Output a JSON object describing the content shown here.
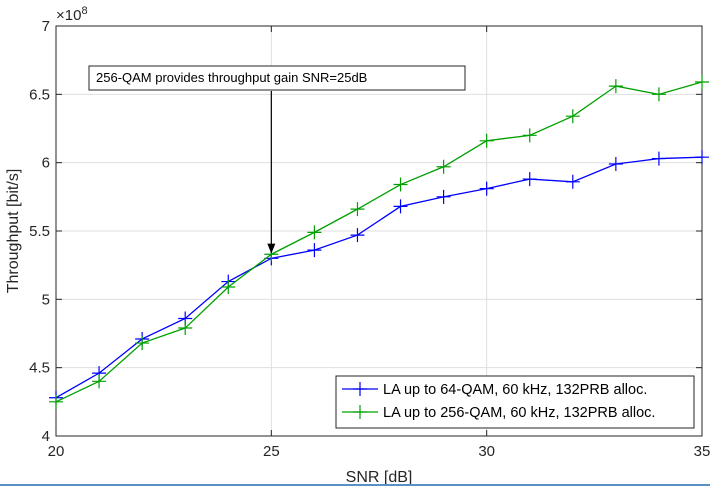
{
  "chart_data": {
    "type": "line",
    "title": "",
    "xlabel": "SNR [dB]",
    "ylabel": "Throughput [bit/s]",
    "y_exponent_label": "×10",
    "y_exponent": "8",
    "xlim": [
      20,
      35
    ],
    "ylim": [
      4,
      7
    ],
    "xticks": [
      "20",
      "25",
      "30",
      "35"
    ],
    "yticks": [
      "4",
      "4.5",
      "5",
      "5.5",
      "6",
      "6.5",
      "7"
    ],
    "grid": true,
    "legend_position": "bottom-right",
    "x": [
      20,
      21,
      22,
      23,
      24,
      25,
      26,
      27,
      28,
      29,
      30,
      31,
      32,
      33,
      34,
      35
    ],
    "series": [
      {
        "name": "LA up to 64-QAM, 60 kHz, 132PRB alloc.",
        "color": "#0000ff",
        "marker": "plus",
        "values": [
          4.28,
          4.46,
          4.71,
          4.86,
          5.13,
          5.3,
          5.36,
          5.47,
          5.68,
          5.75,
          5.81,
          5.88,
          5.86,
          5.99,
          6.03,
          6.04
        ]
      },
      {
        "name": "LA up to 256-QAM, 60 kHz, 132PRB alloc.",
        "color": "#00a000",
        "marker": "plus",
        "values": [
          4.25,
          4.4,
          4.68,
          4.79,
          5.09,
          5.33,
          5.49,
          5.66,
          5.84,
          5.97,
          6.16,
          6.2,
          6.34,
          6.56,
          6.5,
          6.59
        ]
      }
    ],
    "annotation": {
      "text": "256-QAM provides throughput gain SNR=25dB",
      "target_x": 25,
      "target_y": 5.32
    }
  }
}
